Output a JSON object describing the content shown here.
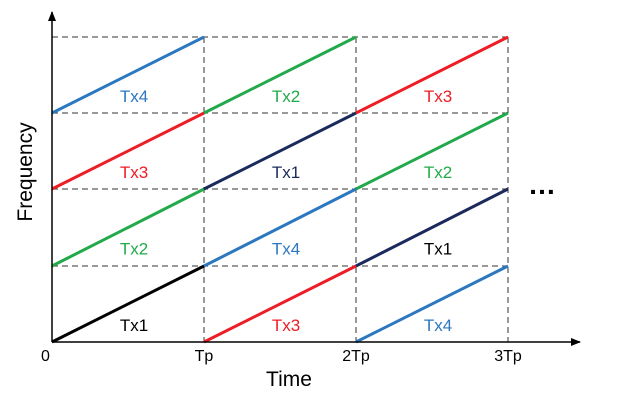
{
  "axes": {
    "x_title": "Time",
    "y_title": "Frequency",
    "origin_label": "0",
    "x_ticks": [
      "Tp",
      "2Tp",
      "3Tp"
    ]
  },
  "ellipsis": "…",
  "colors": {
    "Tx1_black": "#000000",
    "Tx1_navy": "#1b2a5c",
    "Tx2": "#22aa4a",
    "Tx3": "#ee1c24",
    "Tx4": "#2b77c0",
    "grid": "#333333"
  },
  "segments": [
    {
      "label": "Tx1",
      "period": 0,
      "band": 0,
      "color": "#000000",
      "label_color": "#000000"
    },
    {
      "label": "Tx2",
      "period": 0,
      "band": 1,
      "color": "#22aa4a",
      "label_color": "#22aa4a"
    },
    {
      "label": "Tx3",
      "period": 0,
      "band": 2,
      "color": "#ee1c24",
      "label_color": "#ee1c24"
    },
    {
      "label": "Tx4",
      "period": 0,
      "band": 3,
      "color": "#2b77c0",
      "label_color": "#2b77c0"
    },
    {
      "label": "Tx3",
      "period": 1,
      "band": 0,
      "color": "#ee1c24",
      "label_color": "#ee1c24"
    },
    {
      "label": "Tx4",
      "period": 1,
      "band": 1,
      "color": "#2b77c0",
      "label_color": "#2b77c0"
    },
    {
      "label": "Tx1",
      "period": 1,
      "band": 2,
      "color": "#1b2a5c",
      "label_color": "#1b2a5c"
    },
    {
      "label": "Tx2",
      "period": 1,
      "band": 3,
      "color": "#22aa4a",
      "label_color": "#22aa4a"
    },
    {
      "label": "Tx4",
      "period": 2,
      "band": 0,
      "color": "#2b77c0",
      "label_color": "#2b77c0"
    },
    {
      "label": "Tx1",
      "period": 2,
      "band": 1,
      "color": "#1b2a5c",
      "label_color": "#000000"
    },
    {
      "label": "Tx2",
      "period": 2,
      "band": 2,
      "color": "#22aa4a",
      "label_color": "#22aa4a"
    },
    {
      "label": "Tx3",
      "period": 2,
      "band": 3,
      "color": "#ee1c24",
      "label_color": "#ee1c24"
    }
  ]
}
